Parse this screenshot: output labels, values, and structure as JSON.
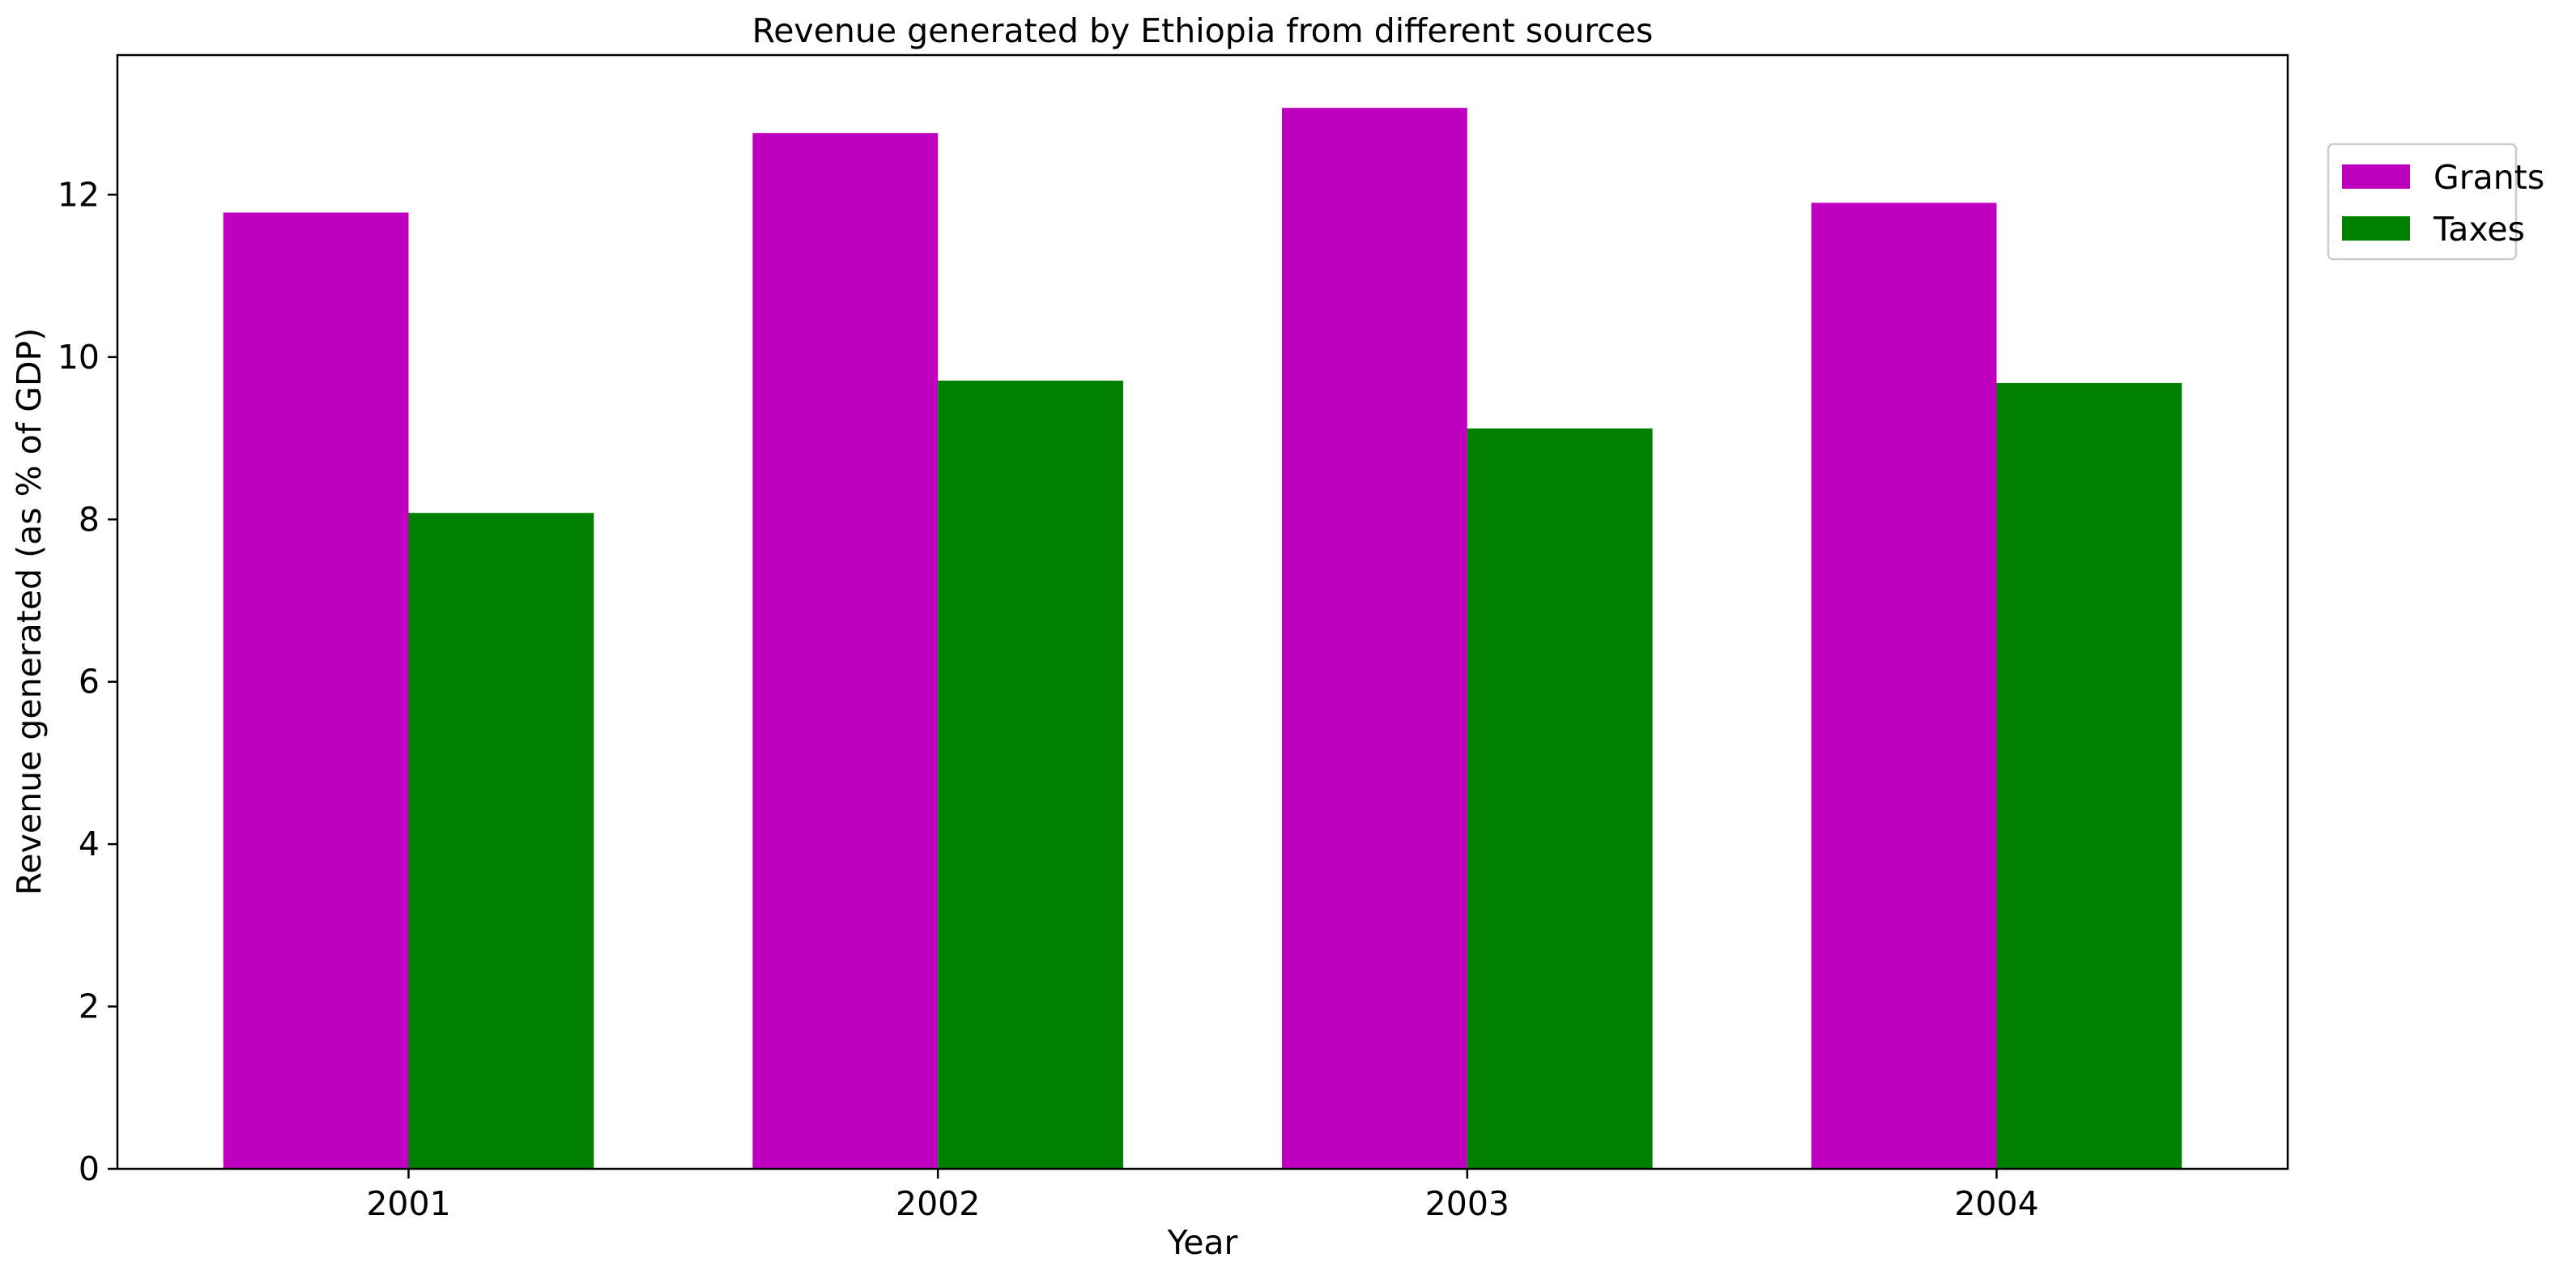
{
  "chart_data": {
    "type": "bar",
    "title": "Revenue generated by Ethiopia from different sources",
    "xlabel": "Year",
    "ylabel": "Revenue generated (as % of GDP)",
    "categories": [
      "2001",
      "2002",
      "2003",
      "2004"
    ],
    "series": [
      {
        "name": "Grants",
        "color": "#bf00bf",
        "values": [
          11.78,
          12.76,
          13.07,
          11.9
        ]
      },
      {
        "name": "Taxes",
        "color": "#008000",
        "values": [
          8.08,
          9.71,
          9.12,
          9.68
        ]
      }
    ],
    "ylim": [
      0,
      13.72
    ],
    "yticks": [
      0,
      2,
      4,
      6,
      8,
      10,
      12
    ],
    "grid": false,
    "legend": "upper-right-outside"
  }
}
